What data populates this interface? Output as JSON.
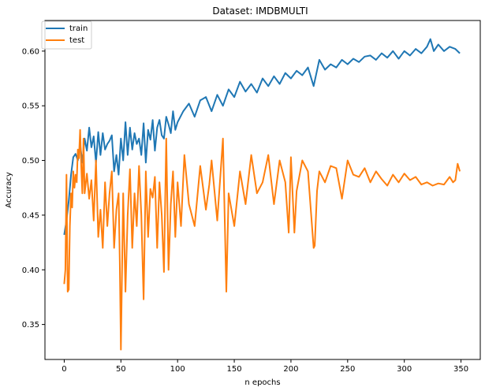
{
  "chart_data": {
    "type": "line",
    "title": "Dataset: IMDBMULTI",
    "xlabel": "n epochs",
    "ylabel": "Accuracy",
    "xlim": [
      -17,
      367
    ],
    "ylim": [
      0.318,
      0.628
    ],
    "xticks": [
      0,
      50,
      100,
      150,
      200,
      250,
      300,
      350
    ],
    "yticks": [
      0.35,
      0.4,
      0.45,
      0.5,
      0.55,
      0.6
    ],
    "ytick_labels": [
      "0.35",
      "0.40",
      "0.45",
      "0.50",
      "0.55",
      "0.60"
    ],
    "legend_position": "top-left",
    "grid": false,
    "colors": {
      "train": "#1f77b4",
      "test": "#ff7f0e"
    },
    "series": [
      {
        "name": "train",
        "color": "#1f77b4",
        "x": [
          0,
          2,
          4,
          6,
          8,
          10,
          12,
          14,
          16,
          18,
          20,
          22,
          24,
          26,
          28,
          30,
          32,
          34,
          36,
          38,
          40,
          42,
          44,
          46,
          48,
          50,
          52,
          54,
          56,
          58,
          60,
          62,
          64,
          66,
          68,
          70,
          72,
          74,
          76,
          78,
          80,
          82,
          84,
          86,
          88,
          90,
          92,
          94,
          96,
          98,
          100,
          105,
          110,
          115,
          120,
          125,
          130,
          135,
          140,
          145,
          150,
          155,
          160,
          165,
          170,
          175,
          180,
          185,
          190,
          195,
          200,
          205,
          210,
          215,
          220,
          225,
          230,
          235,
          240,
          245,
          250,
          255,
          260,
          265,
          270,
          275,
          280,
          285,
          290,
          295,
          300,
          305,
          310,
          315,
          320,
          323,
          326,
          330,
          335,
          340,
          345,
          349
        ],
        "y": [
          0.432,
          0.445,
          0.463,
          0.487,
          0.503,
          0.506,
          0.5,
          0.515,
          0.498,
          0.52,
          0.509,
          0.53,
          0.512,
          0.522,
          0.498,
          0.526,
          0.505,
          0.525,
          0.51,
          0.515,
          0.518,
          0.523,
          0.49,
          0.505,
          0.487,
          0.52,
          0.5,
          0.535,
          0.505,
          0.53,
          0.51,
          0.525,
          0.515,
          0.52,
          0.505,
          0.534,
          0.498,
          0.528,
          0.519,
          0.537,
          0.509,
          0.53,
          0.537,
          0.523,
          0.52,
          0.54,
          0.533,
          0.525,
          0.545,
          0.528,
          0.535,
          0.545,
          0.552,
          0.54,
          0.555,
          0.558,
          0.545,
          0.56,
          0.55,
          0.565,
          0.558,
          0.572,
          0.563,
          0.57,
          0.562,
          0.575,
          0.568,
          0.577,
          0.57,
          0.58,
          0.575,
          0.582,
          0.578,
          0.585,
          0.568,
          0.592,
          0.583,
          0.588,
          0.585,
          0.592,
          0.588,
          0.593,
          0.59,
          0.595,
          0.596,
          0.592,
          0.598,
          0.594,
          0.6,
          0.593,
          0.6,
          0.596,
          0.602,
          0.598,
          0.604,
          0.611,
          0.6,
          0.606,
          0.6,
          0.604,
          0.602,
          0.598
        ]
      },
      {
        "name": "test",
        "color": "#ff7f0e",
        "x": [
          0,
          1,
          2,
          3,
          4,
          5,
          6,
          7,
          8,
          9,
          10,
          11,
          12,
          13,
          14,
          15,
          16,
          17,
          18,
          20,
          22,
          24,
          26,
          28,
          30,
          32,
          34,
          36,
          38,
          40,
          42,
          44,
          46,
          48,
          49,
          50,
          52,
          54,
          56,
          58,
          60,
          62,
          64,
          66,
          68,
          70,
          72,
          74,
          76,
          78,
          80,
          82,
          84,
          86,
          88,
          90,
          92,
          94,
          96,
          98,
          100,
          103,
          106,
          110,
          115,
          120,
          125,
          128,
          130,
          135,
          140,
          143,
          145,
          150,
          155,
          160,
          165,
          170,
          175,
          180,
          185,
          190,
          195,
          198,
          200,
          203,
          205,
          210,
          215,
          220,
          221,
          223,
          225,
          230,
          235,
          240,
          245,
          250,
          255,
          260,
          265,
          270,
          275,
          280,
          285,
          290,
          295,
          300,
          305,
          310,
          315,
          320,
          325,
          330,
          335,
          340,
          343,
          345,
          347,
          349
        ],
        "y": [
          0.387,
          0.4,
          0.487,
          0.38,
          0.382,
          0.44,
          0.47,
          0.457,
          0.49,
          0.475,
          0.487,
          0.48,
          0.51,
          0.502,
          0.528,
          0.495,
          0.47,
          0.52,
          0.47,
          0.488,
          0.465,
          0.482,
          0.445,
          0.5,
          0.43,
          0.455,
          0.42,
          0.48,
          0.44,
          0.47,
          0.49,
          0.42,
          0.455,
          0.47,
          0.407,
          0.327,
          0.47,
          0.38,
          0.45,
          0.492,
          0.42,
          0.47,
          0.44,
          0.495,
          0.45,
          0.373,
          0.49,
          0.43,
          0.474,
          0.466,
          0.485,
          0.42,
          0.48,
          0.45,
          0.398,
          0.52,
          0.4,
          0.46,
          0.49,
          0.43,
          0.48,
          0.44,
          0.505,
          0.46,
          0.44,
          0.495,
          0.455,
          0.478,
          0.5,
          0.445,
          0.52,
          0.38,
          0.47,
          0.44,
          0.49,
          0.46,
          0.505,
          0.47,
          0.48,
          0.505,
          0.46,
          0.5,
          0.48,
          0.434,
          0.503,
          0.434,
          0.472,
          0.5,
          0.49,
          0.42,
          0.422,
          0.472,
          0.49,
          0.48,
          0.495,
          0.493,
          0.465,
          0.5,
          0.487,
          0.485,
          0.493,
          0.48,
          0.49,
          0.483,
          0.477,
          0.487,
          0.48,
          0.488,
          0.482,
          0.485,
          0.478,
          0.48,
          0.477,
          0.479,
          0.478,
          0.485,
          0.48,
          0.482,
          0.497,
          0.49
        ]
      }
    ]
  }
}
